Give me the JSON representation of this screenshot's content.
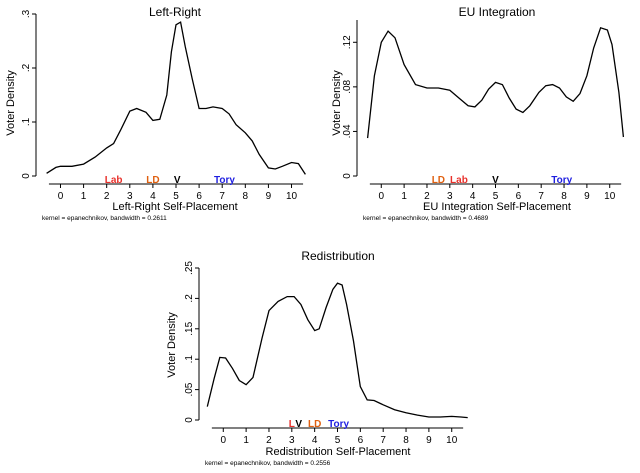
{
  "chart_data": [
    {
      "type": "line",
      "title": "Left-Right",
      "xlabel": "Left-Right Self-Placement",
      "ylabel": "Voter Density",
      "note": "kernel = epanechnikov, bandwidth = 0.2611",
      "xlim": [
        -0.8,
        10.8
      ],
      "ylim": [
        0,
        0.3
      ],
      "xticks": [
        0,
        1,
        2,
        3,
        4,
        5,
        6,
        7,
        8,
        9,
        10
      ],
      "yticks": [
        {
          "v": 0,
          "label": "0"
        },
        {
          "v": 0.1,
          "label": ".1"
        },
        {
          "v": 0.2,
          "label": ".2"
        },
        {
          "v": 0.3,
          "label": ".3"
        }
      ],
      "x": [
        -0.6,
        -0.2,
        0,
        0.5,
        1,
        1.5,
        2,
        2.3,
        2.6,
        3,
        3.3,
        3.7,
        4,
        4.3,
        4.6,
        4.8,
        5,
        5.2,
        5.4,
        5.7,
        6,
        6.3,
        6.6,
        7,
        7.3,
        7.6,
        8,
        8.3,
        8.6,
        9,
        9.3,
        9.6,
        10,
        10.3,
        10.6
      ],
      "y": [
        0.005,
        0.016,
        0.018,
        0.018,
        0.022,
        0.035,
        0.052,
        0.06,
        0.085,
        0.12,
        0.125,
        0.118,
        0.103,
        0.105,
        0.15,
        0.23,
        0.28,
        0.285,
        0.24,
        0.18,
        0.125,
        0.125,
        0.128,
        0.125,
        0.115,
        0.095,
        0.08,
        0.065,
        0.04,
        0.015,
        0.013,
        0.018,
        0.025,
        0.023,
        0.003
      ],
      "markers": [
        {
          "label": "Lab",
          "x": 2.3,
          "color": "#e8312b"
        },
        {
          "label": "LD",
          "x": 4.0,
          "color": "#e06010"
        },
        {
          "label": "V",
          "x": 5.05,
          "color": "#000000"
        },
        {
          "label": "Tory",
          "x": 7.1,
          "color": "#1f1fe0"
        }
      ]
    },
    {
      "type": "line",
      "title": "EU Integration",
      "xlabel": "EU Integration Self-Placement",
      "ylabel": "Voter Density",
      "note": "kernel = epanechnikov, bandwidth = 0.4689",
      "xlim": [
        -0.8,
        10.8
      ],
      "ylim": [
        0,
        0.14
      ],
      "xticks": [
        0,
        1,
        2,
        3,
        4,
        5,
        6,
        7,
        8,
        9,
        10
      ],
      "yticks": [
        {
          "v": 0,
          "label": "0"
        },
        {
          "v": 0.04,
          "label": ".04"
        },
        {
          "v": 0.08,
          "label": ".08"
        },
        {
          "v": 0.12,
          "label": ".12"
        }
      ],
      "x": [
        -0.6,
        -0.3,
        0,
        0.3,
        0.6,
        1,
        1.5,
        2,
        2.5,
        3,
        3.4,
        3.8,
        4.1,
        4.4,
        4.7,
        5,
        5.3,
        5.6,
        5.9,
        6.2,
        6.5,
        6.9,
        7.2,
        7.5,
        7.8,
        8.1,
        8.4,
        8.7,
        9,
        9.3,
        9.6,
        9.9,
        10.1,
        10.4,
        10.6
      ],
      "y": [
        0.034,
        0.09,
        0.12,
        0.13,
        0.124,
        0.1,
        0.082,
        0.079,
        0.079,
        0.077,
        0.07,
        0.063,
        0.062,
        0.068,
        0.078,
        0.084,
        0.082,
        0.07,
        0.06,
        0.057,
        0.063,
        0.075,
        0.081,
        0.082,
        0.079,
        0.071,
        0.067,
        0.074,
        0.09,
        0.115,
        0.133,
        0.131,
        0.118,
        0.075,
        0.035
      ],
      "markers": [
        {
          "label": "LD",
          "x": 2.5,
          "color": "#e06010"
        },
        {
          "label": "Lab",
          "x": 3.4,
          "color": "#e8312b"
        },
        {
          "label": "V",
          "x": 5.0,
          "color": "#000000"
        },
        {
          "label": "Tory",
          "x": 7.9,
          "color": "#1f1fe0"
        }
      ]
    },
    {
      "type": "line",
      "title": "Redistribution",
      "xlabel": "Redistribution Self-Placement",
      "ylabel": "Voter Density",
      "note": "kernel = epanechnikov, bandwidth = 0.2556",
      "xlim": [
        -0.8,
        10.8
      ],
      "ylim": [
        0,
        0.25
      ],
      "xticks": [
        0,
        1,
        2,
        3,
        4,
        5,
        6,
        7,
        8,
        9,
        10
      ],
      "yticks": [
        {
          "v": 0,
          "label": "0"
        },
        {
          "v": 0.05,
          "label": ".05"
        },
        {
          "v": 0.1,
          "label": ".1"
        },
        {
          "v": 0.15,
          "label": ".15"
        },
        {
          "v": 0.2,
          "label": ".2"
        },
        {
          "v": 0.25,
          "label": ".25"
        }
      ],
      "x": [
        -0.7,
        -0.4,
        -0.15,
        0.1,
        0.4,
        0.7,
        1,
        1.3,
        1.7,
        2,
        2.4,
        2.8,
        3.1,
        3.4,
        3.7,
        4,
        4.2,
        4.5,
        4.8,
        5,
        5.2,
        5.4,
        5.7,
        6,
        6.3,
        6.6,
        7,
        7.5,
        8,
        8.5,
        9,
        9.5,
        10,
        10.4,
        10.7
      ],
      "y": [
        0.022,
        0.068,
        0.103,
        0.102,
        0.085,
        0.065,
        0.058,
        0.07,
        0.135,
        0.18,
        0.195,
        0.203,
        0.203,
        0.19,
        0.165,
        0.147,
        0.15,
        0.185,
        0.215,
        0.225,
        0.222,
        0.19,
        0.13,
        0.055,
        0.033,
        0.032,
        0.025,
        0.017,
        0.012,
        0.008,
        0.005,
        0.005,
        0.006,
        0.005,
        0.004
      ],
      "markers": [
        {
          "label": "L",
          "x": 3.0,
          "color": "#e8312b"
        },
        {
          "label": "V",
          "x": 3.3,
          "color": "#000000"
        },
        {
          "label": "LD",
          "x": 4.0,
          "color": "#e06010"
        },
        {
          "label": "Tory",
          "x": 5.05,
          "color": "#1f1fe0"
        }
      ]
    }
  ]
}
